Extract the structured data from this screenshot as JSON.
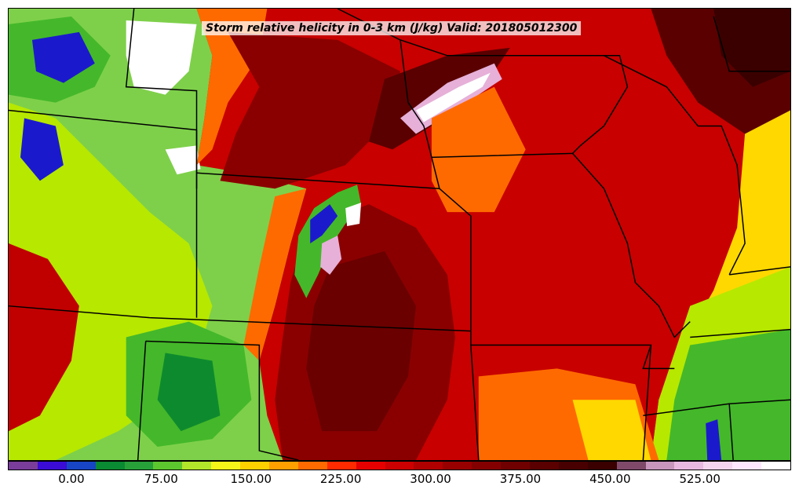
{
  "map": {
    "title": "Storm relative helicity in 0-3 km (J/kg) Valid: 201805012300",
    "field_units": "J/kg",
    "valid_time": "201805012300",
    "fill_colors": {
      "low_background": "#c80000",
      "dark_core": "#7a0000",
      "very_dark": "#4a0000",
      "orange": "#ff6a00",
      "yellow": "#ffd800",
      "lime": "#b7e800",
      "green": "#44b82a",
      "dark_green": "#0e8a2e",
      "blue": "#1a1acc",
      "purple": "#6a2a9a",
      "pink": "#e6b0d8",
      "white": "#ffffff"
    }
  },
  "colorbar": {
    "colors": [
      "#7a3d9a",
      "#3a0cd6",
      "#1745c4",
      "#0a8a32",
      "#28a03a",
      "#5cc62e",
      "#b2e62a",
      "#f5f51a",
      "#ffd000",
      "#ffa000",
      "#ff6a00",
      "#ff2a00",
      "#e60000",
      "#cc0000",
      "#b00000",
      "#980000",
      "#840000",
      "#700000",
      "#5a0000",
      "#480000",
      "#3a0000",
      "#7f4a6a",
      "#c896bd",
      "#e8b8e0",
      "#f4d4ee",
      "#ffe6ff",
      "#ffffff"
    ],
    "labels": [
      "0.00",
      "75.00",
      "150.00",
      "225.00",
      "300.00",
      "375.00",
      "450.00",
      "525.00"
    ]
  }
}
